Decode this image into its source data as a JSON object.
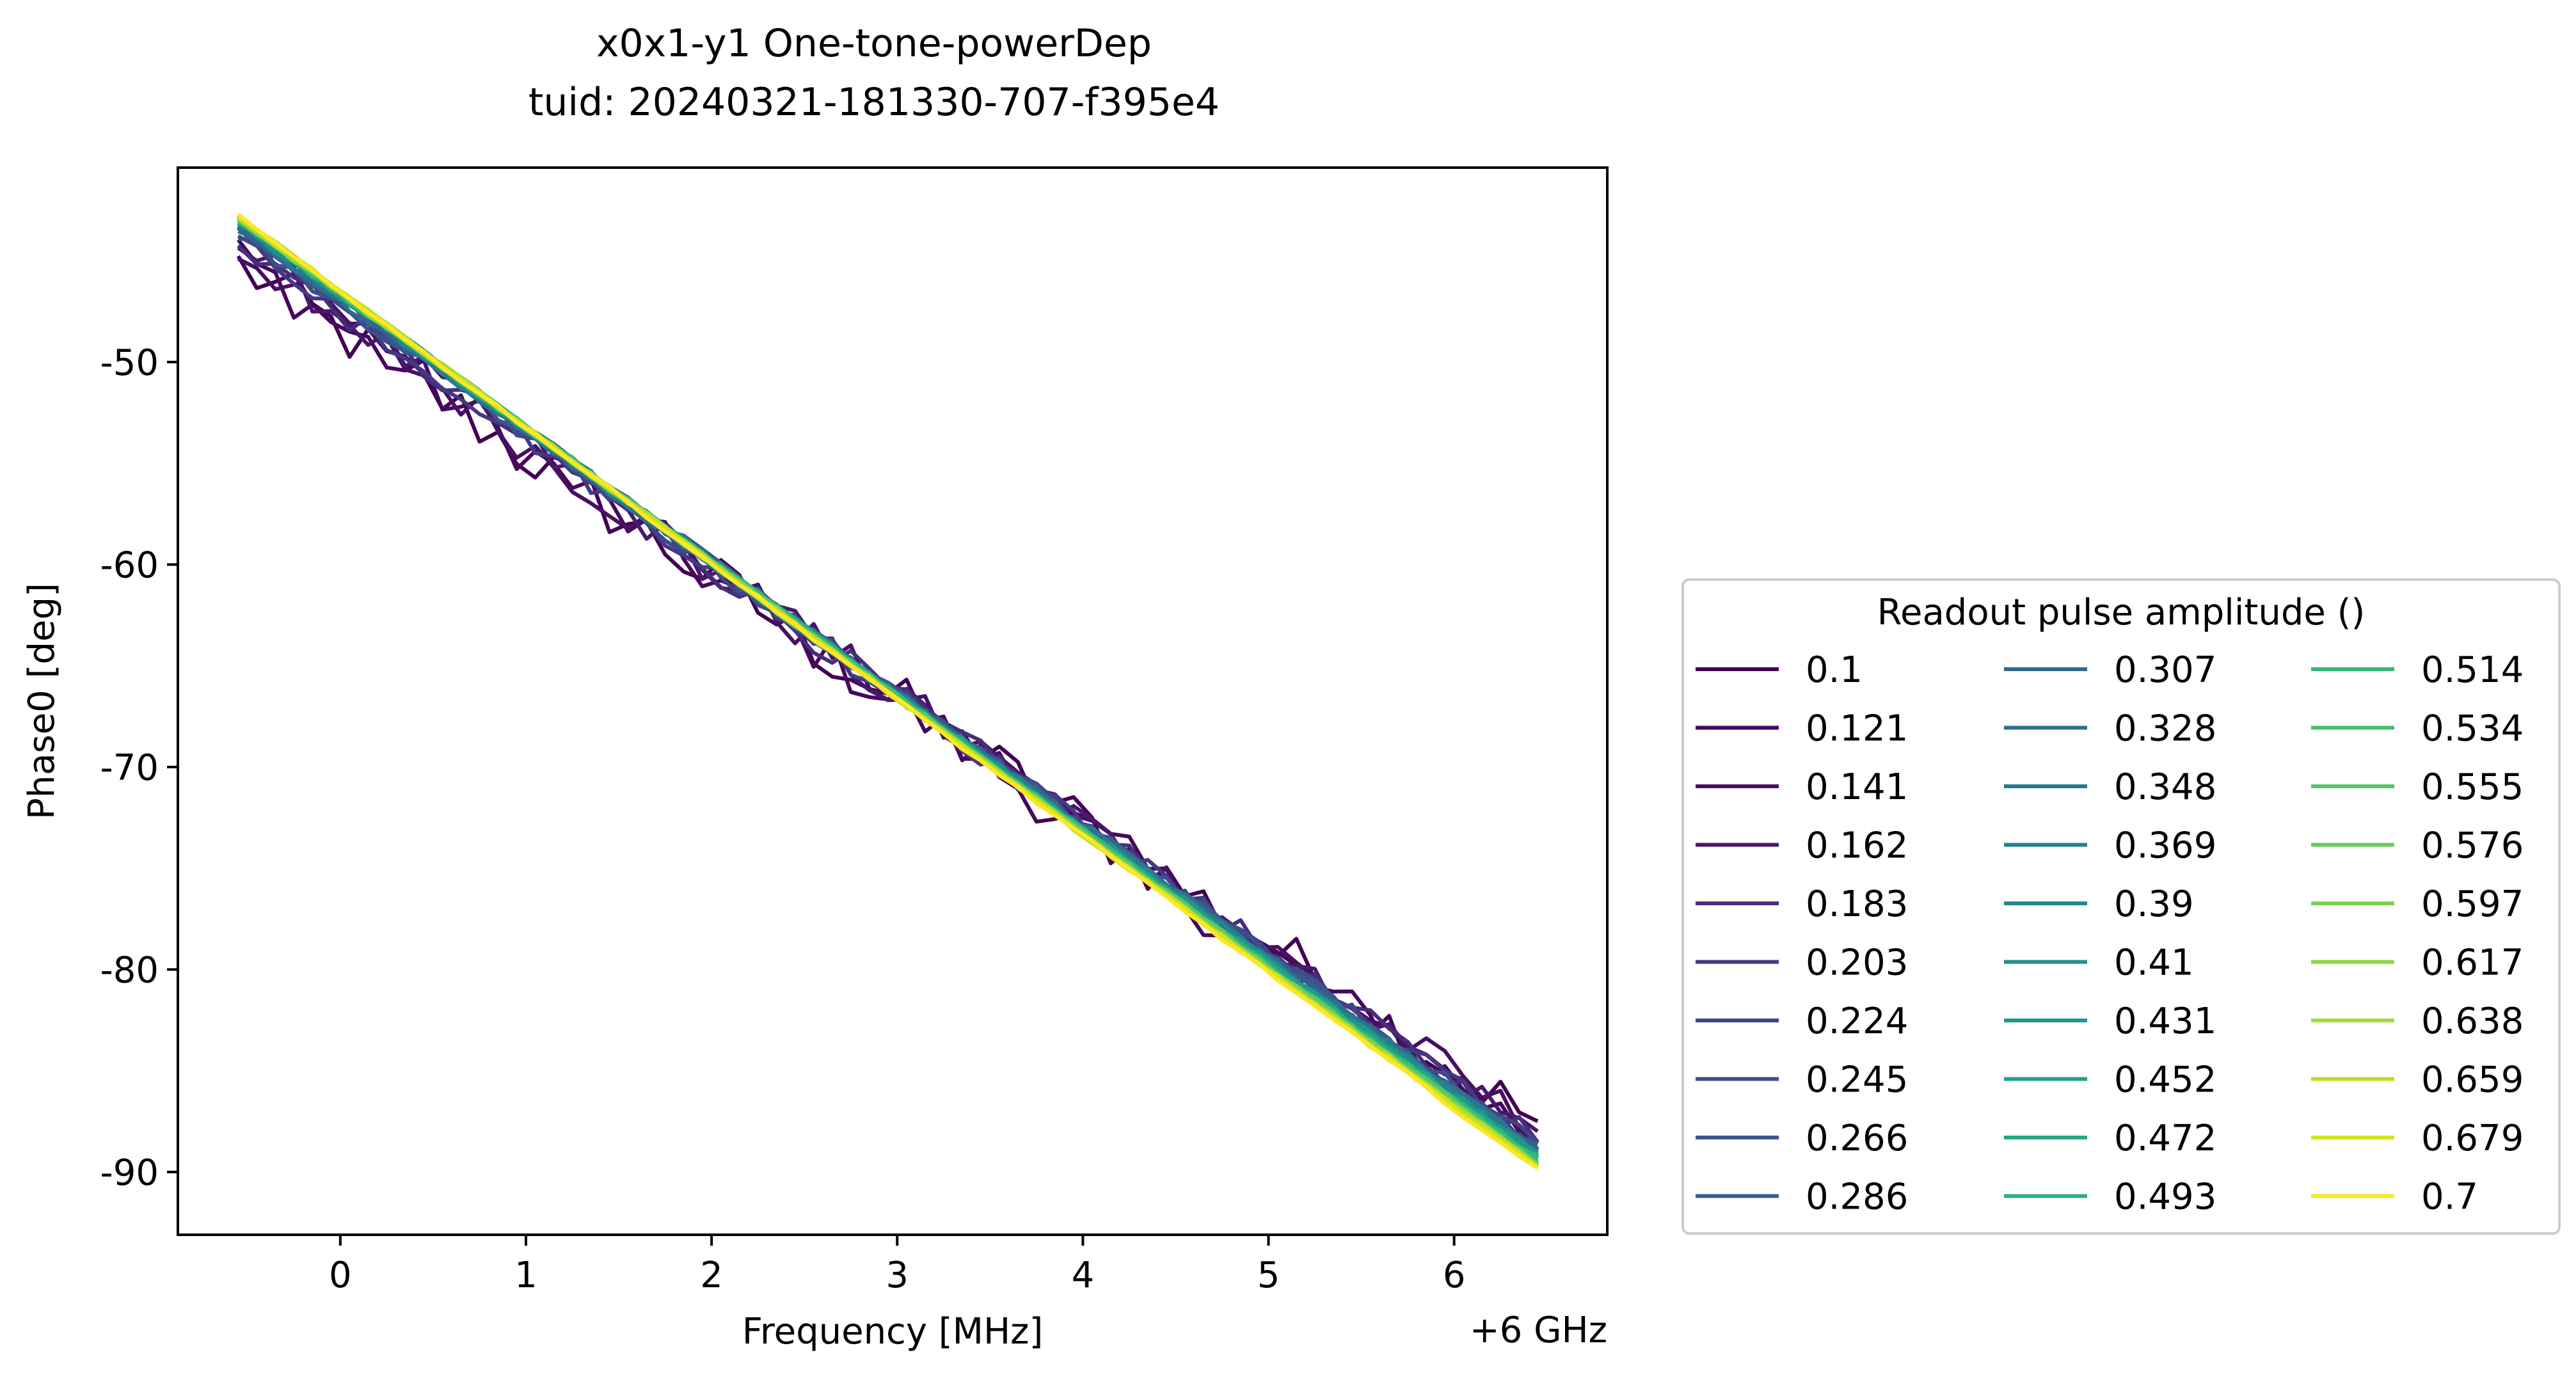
{
  "chart_data": {
    "type": "line",
    "title": "x0x1-y1 One-tone-powerDep",
    "subtitle": "tuid: 20240321-181330-707-f395e4",
    "xlabel": "Frequency [MHz]",
    "ylabel": "Phase0 [deg]",
    "x_offset_label": "+6 GHz",
    "xlim": [
      -0.875,
      6.825
    ],
    "ylim": [
      -93.1,
      -40.4
    ],
    "x_ticks": [
      0,
      1,
      2,
      3,
      4,
      5,
      6
    ],
    "x_tick_labels": [
      "0",
      "1",
      "2",
      "3",
      "4",
      "5",
      "6"
    ],
    "y_ticks": [
      -50,
      -60,
      -70,
      -80,
      -90
    ],
    "y_tick_labels": [
      "-50",
      "-60",
      "-70",
      "-80",
      "-90"
    ],
    "x_start": -0.55,
    "x_end": 6.45,
    "n_points": 71,
    "legend": {
      "title": "Readout pulse amplitude ()",
      "placement": "center-right outside",
      "columns": 3
    },
    "series": [
      {
        "name": "0.1",
        "color": "#440154",
        "start": -45.2,
        "end": -87.6,
        "noise": 1.4
      },
      {
        "name": "0.121",
        "color": "#46085c",
        "start": -44.8,
        "end": -88.3,
        "noise": 1.2
      },
      {
        "name": "0.141",
        "color": "#471063",
        "start": -44.4,
        "end": -88.0,
        "noise": 1.0
      },
      {
        "name": "0.162",
        "color": "#48186a",
        "start": -44.2,
        "end": -88.2,
        "noise": 0.85
      },
      {
        "name": "0.183",
        "color": "#472d7b",
        "start": -44.0,
        "end": -88.4,
        "noise": 0.7
      },
      {
        "name": "0.203",
        "color": "#453882",
        "start": -43.8,
        "end": -88.5,
        "noise": 0.6
      },
      {
        "name": "0.224",
        "color": "#414487",
        "start": -43.6,
        "end": -88.6,
        "noise": 0.5
      },
      {
        "name": "0.245",
        "color": "#3d4e8a",
        "start": -43.5,
        "end": -88.7,
        "noise": 0.45
      },
      {
        "name": "0.266",
        "color": "#39568c",
        "start": -43.4,
        "end": -88.8,
        "noise": 0.4
      },
      {
        "name": "0.286",
        "color": "#355f8d",
        "start": -43.3,
        "end": -88.9,
        "noise": 0.36
      },
      {
        "name": "0.307",
        "color": "#31688e",
        "start": -43.3,
        "end": -88.9,
        "noise": 0.32
      },
      {
        "name": "0.328",
        "color": "#2d708e",
        "start": -43.2,
        "end": -89.0,
        "noise": 0.3
      },
      {
        "name": "0.348",
        "color": "#2a788e",
        "start": -43.2,
        "end": -89.0,
        "noise": 0.28
      },
      {
        "name": "0.369",
        "color": "#26818e",
        "start": -43.1,
        "end": -89.1,
        "noise": 0.26
      },
      {
        "name": "0.39",
        "color": "#23888e",
        "start": -43.1,
        "end": -89.1,
        "noise": 0.24
      },
      {
        "name": "0.41",
        "color": "#21918c",
        "start": -43.1,
        "end": -89.2,
        "noise": 0.22
      },
      {
        "name": "0.431",
        "color": "#1f988b",
        "start": -43.0,
        "end": -89.2,
        "noise": 0.2
      },
      {
        "name": "0.452",
        "color": "#1fa188",
        "start": -43.0,
        "end": -89.3,
        "noise": 0.19
      },
      {
        "name": "0.472",
        "color": "#22a884",
        "start": -43.0,
        "end": -89.3,
        "noise": 0.18
      },
      {
        "name": "0.493",
        "color": "#2ab07f",
        "start": -43.0,
        "end": -89.4,
        "noise": 0.17
      },
      {
        "name": "0.514",
        "color": "#35b779",
        "start": -42.9,
        "end": -89.4,
        "noise": 0.16
      },
      {
        "name": "0.534",
        "color": "#44bf70",
        "start": -42.9,
        "end": -89.5,
        "noise": 0.15
      },
      {
        "name": "0.555",
        "color": "#54c568",
        "start": -42.9,
        "end": -89.5,
        "noise": 0.14
      },
      {
        "name": "0.576",
        "color": "#65cb5e",
        "start": -42.9,
        "end": -89.6,
        "noise": 0.13
      },
      {
        "name": "0.597",
        "color": "#7ad151",
        "start": -42.9,
        "end": -89.6,
        "noise": 0.12
      },
      {
        "name": "0.617",
        "color": "#8fd744",
        "start": -42.9,
        "end": -89.7,
        "noise": 0.12
      },
      {
        "name": "0.638",
        "color": "#a5db36",
        "start": -42.8,
        "end": -89.7,
        "noise": 0.11
      },
      {
        "name": "0.659",
        "color": "#bddf26",
        "start": -42.8,
        "end": -89.8,
        "noise": 0.11
      },
      {
        "name": "0.679",
        "color": "#d2e21b",
        "start": -42.8,
        "end": -89.8,
        "noise": 0.1
      },
      {
        "name": "0.7",
        "color": "#fde725",
        "start": -42.8,
        "end": -89.9,
        "noise": 0.1
      }
    ]
  }
}
